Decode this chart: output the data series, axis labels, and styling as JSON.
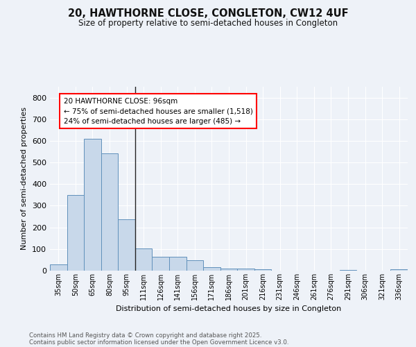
{
  "title": "20, HAWTHORNE CLOSE, CONGLETON, CW12 4UF",
  "subtitle": "Size of property relative to semi-detached houses in Congleton",
  "xlabel": "Distribution of semi-detached houses by size in Congleton",
  "ylabel": "Number of semi-detached properties",
  "footnote1": "Contains HM Land Registry data © Crown copyright and database right 2025.",
  "footnote2": "Contains public sector information licensed under the Open Government Licence v3.0.",
  "categories": [
    "35sqm",
    "50sqm",
    "65sqm",
    "80sqm",
    "95sqm",
    "111sqm",
    "126sqm",
    "141sqm",
    "156sqm",
    "171sqm",
    "186sqm",
    "201sqm",
    "216sqm",
    "231sqm",
    "246sqm",
    "261sqm",
    "276sqm",
    "291sqm",
    "306sqm",
    "321sqm",
    "336sqm"
  ],
  "values": [
    28,
    350,
    608,
    542,
    238,
    102,
    65,
    65,
    47,
    15,
    10,
    10,
    7,
    0,
    0,
    0,
    0,
    4,
    0,
    0,
    8
  ],
  "bar_color": "#c8d8ea",
  "bar_edge_color": "#6090bb",
  "annotation_title": "20 HAWTHORNE CLOSE: 96sqm",
  "annotation_line1": "← 75% of semi-detached houses are smaller (1,518)",
  "annotation_line2": "24% of semi-detached houses are larger (485) →",
  "vline_index": 4,
  "bg_color": "#eef2f8",
  "grid_color": "#ffffff",
  "ylim": [
    0,
    850
  ],
  "yticks": [
    0,
    100,
    200,
    300,
    400,
    500,
    600,
    700,
    800
  ]
}
